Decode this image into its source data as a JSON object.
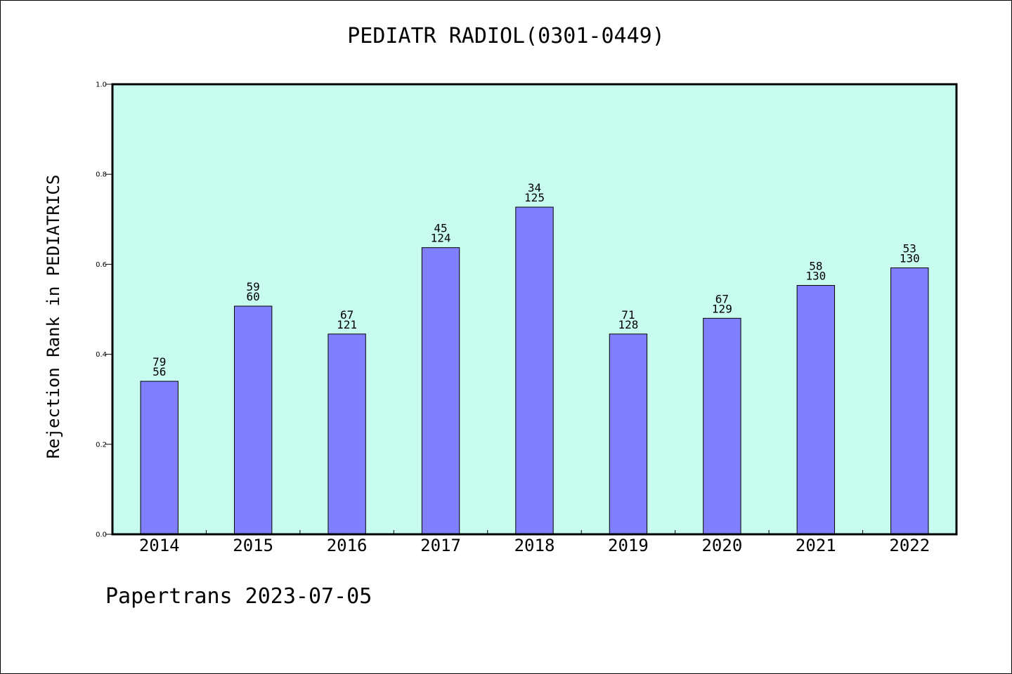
{
  "chart_data": {
    "type": "bar",
    "title": "PEDIATR RADIOL(0301-0449)",
    "ylabel": "Rejection Rank in PEDIATRICS",
    "xlabel": "",
    "ylim": [
      0,
      1.0
    ],
    "yticks": [
      "0.0",
      "0.2",
      "0.4",
      "0.6",
      "0.8",
      "1.0"
    ],
    "categories": [
      "2014",
      "2015",
      "2016",
      "2017",
      "2018",
      "2019",
      "2020",
      "2021",
      "2022"
    ],
    "values": [
      0.34,
      0.507,
      0.445,
      0.637,
      0.727,
      0.445,
      0.48,
      0.553,
      0.592
    ],
    "labels_top": [
      "79",
      "59",
      "67",
      "45",
      "34",
      "71",
      "67",
      "58",
      "53"
    ],
    "labels_bottom": [
      "56",
      "60",
      "121",
      "124",
      "125",
      "128",
      "129",
      "130",
      "130"
    ],
    "colors": {
      "bar": "#8080ff",
      "plot_bg": "#c8fcef",
      "axis": "#000000"
    },
    "grid": false,
    "legend": "none"
  },
  "footer": "Papertrans 2023-07-05"
}
